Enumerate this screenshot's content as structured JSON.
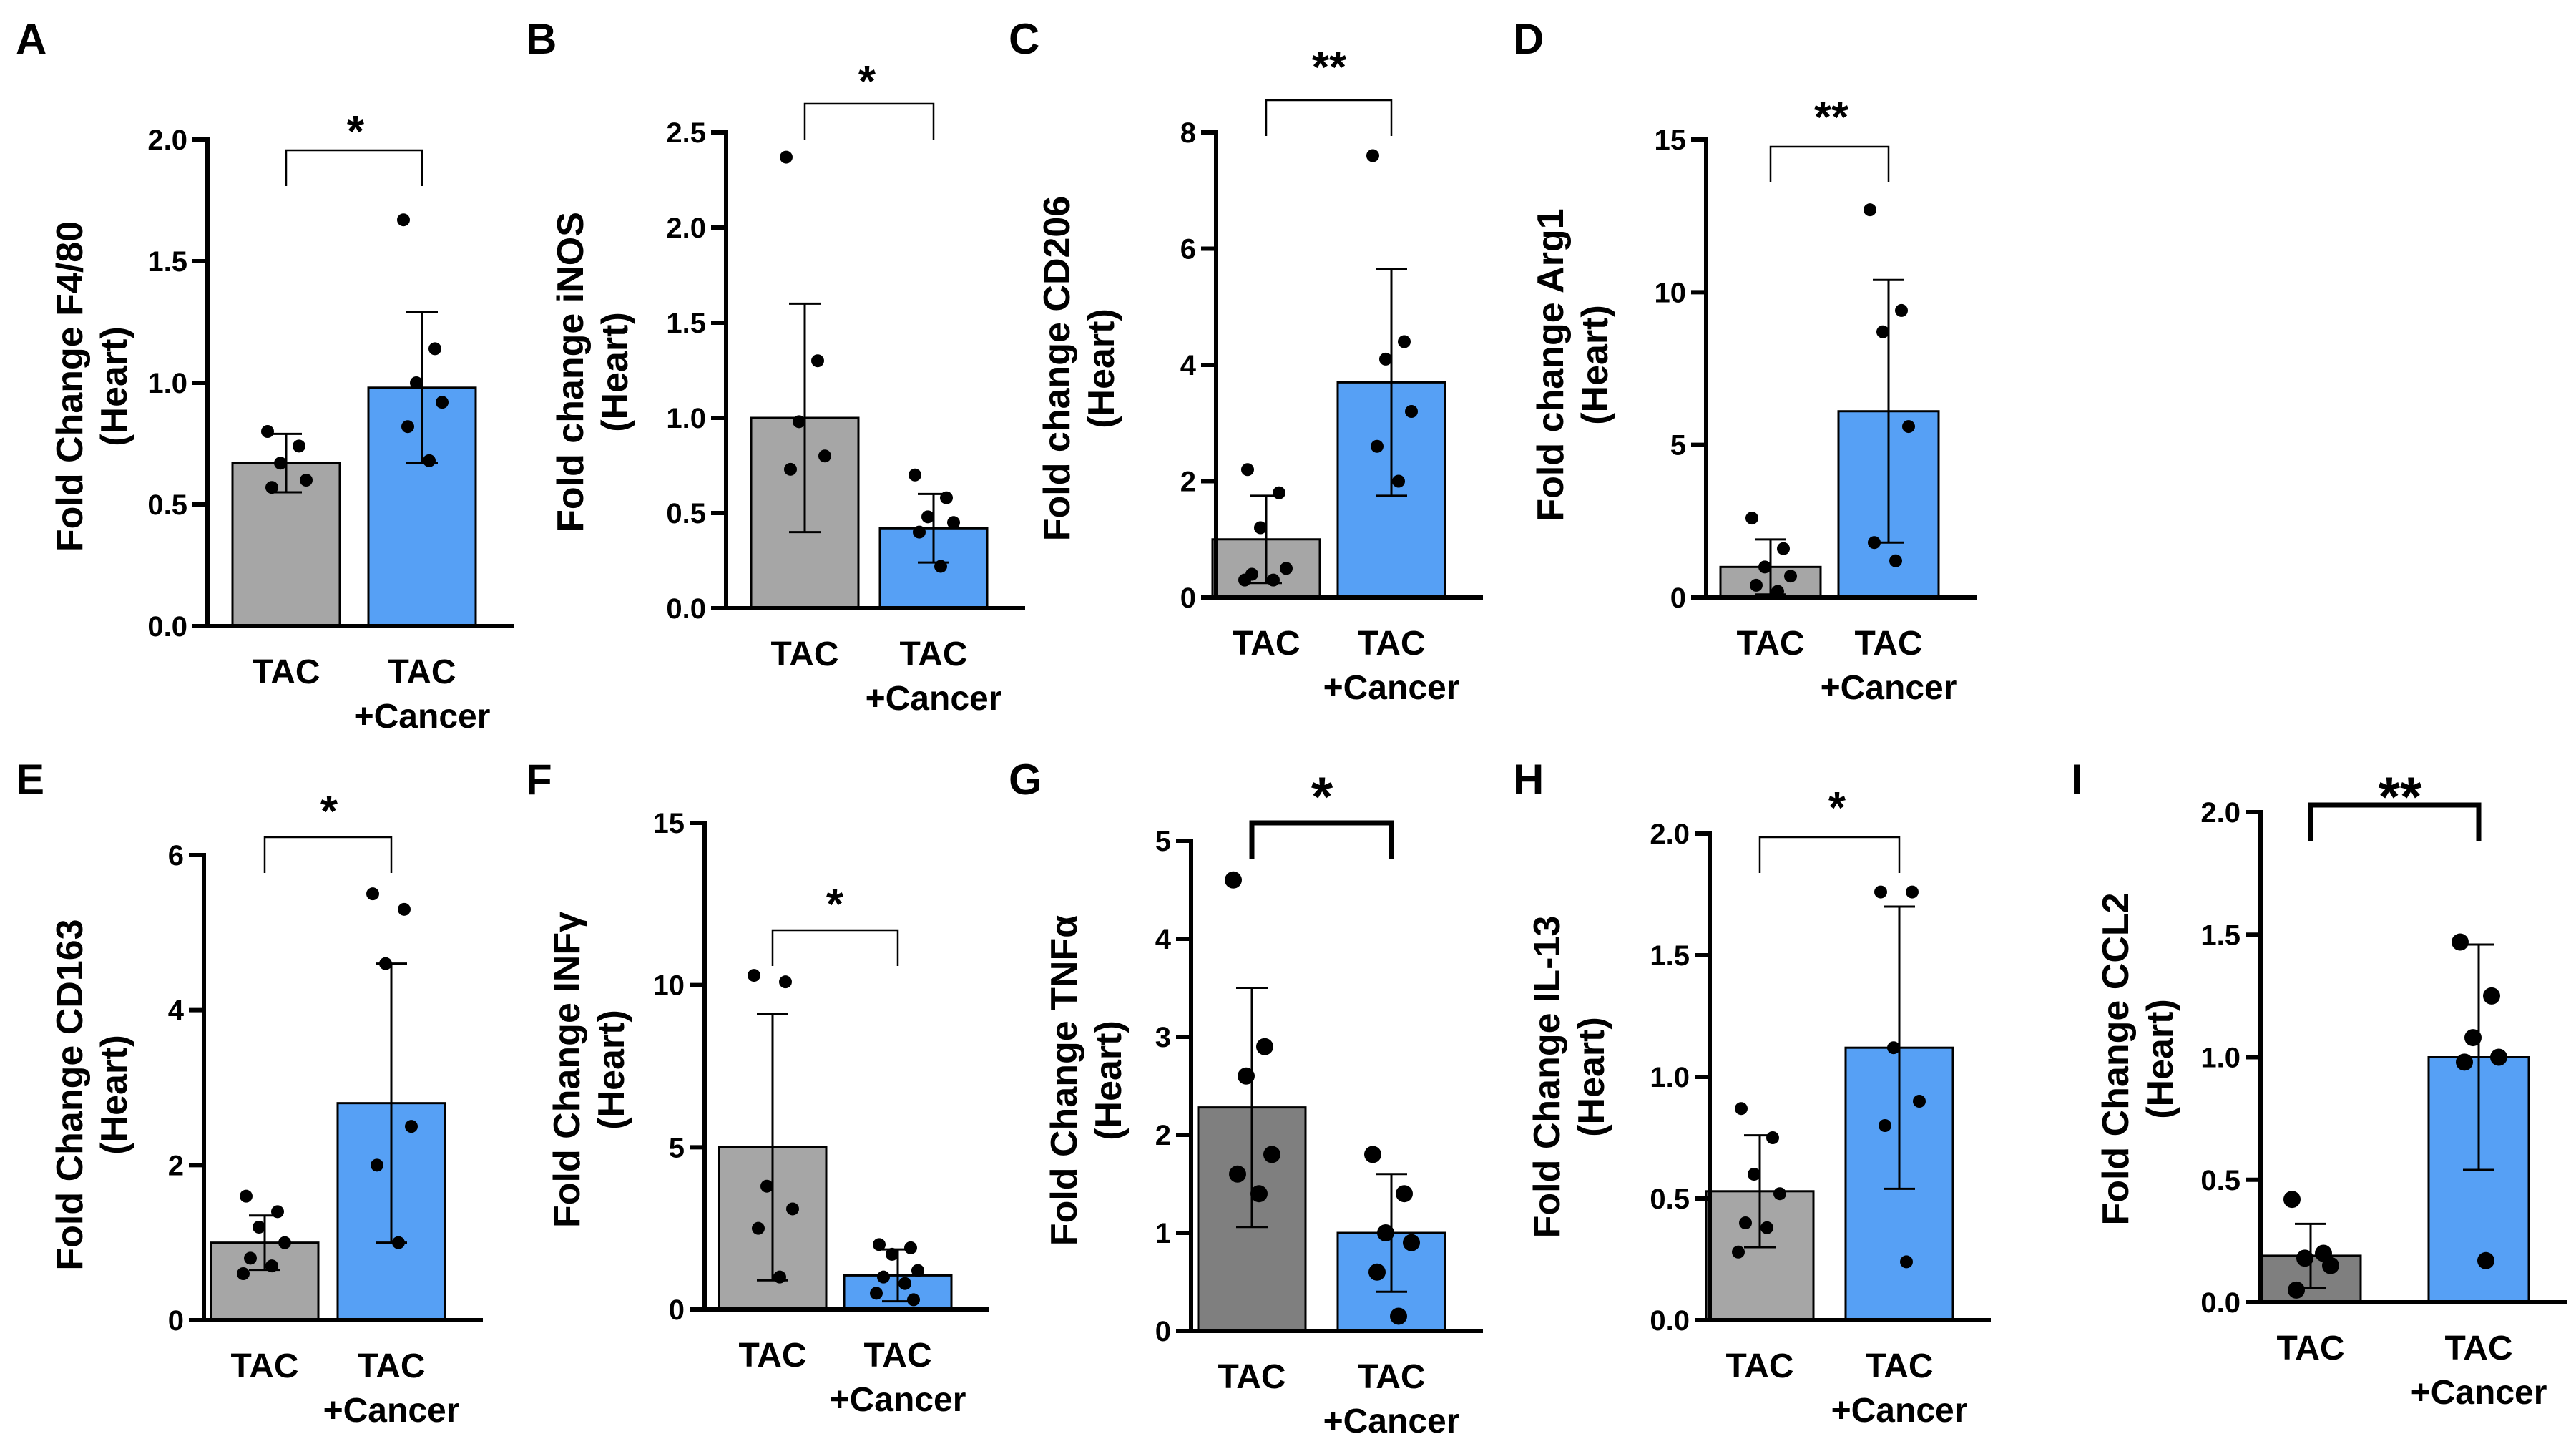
{
  "colors": {
    "gray": "#a6a6a6",
    "darkgray": "#7f7f7f",
    "blue": "#56a0f5",
    "edge": "#000000"
  },
  "chart_data": [
    {
      "panel": "A",
      "type": "bar",
      "categories": [
        "TAC",
        "TAC\n+Cancer"
      ],
      "ylabel": "Fold Change F4/80\n(Heart)",
      "ylim": [
        0,
        2.0
      ],
      "yticks": [
        "0.0",
        "0.5",
        "1.0",
        "1.5",
        "2.0"
      ],
      "ytick_values": [
        0,
        0.5,
        1.0,
        1.5,
        2.0
      ],
      "series": [
        {
          "values": [
            0.67,
            0.98
          ],
          "errors": [
            0.12,
            0.31
          ]
        }
      ],
      "points": [
        [
          0.8,
          0.74,
          0.67,
          0.6,
          0.57
        ],
        [
          1.67,
          1.14,
          1.0,
          0.92,
          0.82,
          0.68
        ]
      ],
      "significance": "*"
    },
    {
      "panel": "B",
      "type": "bar",
      "categories": [
        "TAC",
        "TAC\n+Cancer"
      ],
      "ylabel": "Fold change iNOS\n(Heart)",
      "ylim": [
        0,
        2.5
      ],
      "yticks": [
        "0.0",
        "0.5",
        "1.0",
        "1.5",
        "2.0",
        "2.5"
      ],
      "ytick_values": [
        0,
        0.5,
        1.0,
        1.5,
        2.0,
        2.5
      ],
      "series": [
        {
          "values": [
            1.0,
            0.42
          ],
          "errors": [
            0.6,
            0.18
          ]
        }
      ],
      "points": [
        [
          2.37,
          1.3,
          0.98,
          0.8,
          0.73
        ],
        [
          0.7,
          0.58,
          0.48,
          0.45,
          0.4,
          0.22
        ]
      ],
      "significance": "*"
    },
    {
      "panel": "C",
      "type": "bar",
      "categories": [
        "TAC",
        "TAC\n+Cancer"
      ],
      "ylabel": "Fold change CD206\n(Heart)",
      "ylim": [
        0,
        8
      ],
      "yticks": [
        "0",
        "2",
        "4",
        "6",
        "8"
      ],
      "ytick_values": [
        0,
        2,
        4,
        6,
        8
      ],
      "series": [
        {
          "values": [
            1.0,
            3.7
          ],
          "errors": [
            0.75,
            1.95
          ]
        }
      ],
      "points": [
        [
          2.2,
          1.8,
          1.2,
          0.5,
          0.4,
          0.3,
          0.3
        ],
        [
          7.6,
          4.4,
          4.1,
          3.2,
          2.6,
          2.0
        ]
      ],
      "significance": "**"
    },
    {
      "panel": "D",
      "type": "bar",
      "categories": [
        "TAC",
        "TAC\n+Cancer"
      ],
      "ylabel": "Fold change Arg1\n(Heart)",
      "ylim": [
        0,
        15
      ],
      "yticks": [
        "0",
        "5",
        "10",
        "15"
      ],
      "ytick_values": [
        0,
        5,
        10,
        15
      ],
      "series": [
        {
          "values": [
            1.0,
            6.1
          ],
          "errors": [
            0.9,
            4.3
          ]
        }
      ],
      "points": [
        [
          2.6,
          1.6,
          1.0,
          0.7,
          0.4,
          0.2
        ],
        [
          12.7,
          9.4,
          8.7,
          5.6,
          1.8,
          1.2
        ]
      ],
      "significance": "**"
    },
    {
      "panel": "E",
      "type": "bar",
      "categories": [
        "TAC",
        "TAC\n+Cancer"
      ],
      "ylabel": "Fold Change CD163\n(Heart)",
      "ylim": [
        0,
        6
      ],
      "yticks": [
        "0",
        "2",
        "4",
        "6"
      ],
      "ytick_values": [
        0,
        2,
        4,
        6
      ],
      "series": [
        {
          "values": [
            1.0,
            2.8
          ],
          "errors": [
            0.35,
            1.8
          ]
        }
      ],
      "points": [
        [
          1.6,
          1.4,
          1.2,
          1.0,
          0.8,
          0.7,
          0.6
        ],
        [
          5.5,
          5.3,
          4.6,
          2.5,
          2.0,
          1.0
        ]
      ],
      "significance": "*"
    },
    {
      "panel": "F",
      "type": "bar",
      "categories": [
        "TAC",
        "TAC\n+Cancer"
      ],
      "ylabel": "Fold Change INFγ\n(Heart)",
      "ylim": [
        0,
        15
      ],
      "yticks": [
        "0",
        "5",
        "10",
        "15"
      ],
      "ytick_values": [
        0,
        5,
        10,
        15
      ],
      "series": [
        {
          "values": [
            5.0,
            1.05
          ],
          "errors": [
            4.1,
            0.8
          ]
        }
      ],
      "points": [
        [
          10.3,
          10.1,
          3.8,
          3.1,
          2.5,
          1.0
        ],
        [
          2.0,
          1.9,
          1.7,
          1.2,
          1.0,
          0.8,
          0.5,
          0.3
        ]
      ],
      "significance": "*"
    },
    {
      "panel": "G",
      "type": "bar",
      "categories": [
        "TAC",
        "TAC\n+Cancer"
      ],
      "ylabel": "Fold Change TNFα\n(Heart)",
      "ylim": [
        0,
        5
      ],
      "yticks": [
        "0",
        "1",
        "2",
        "3",
        "4",
        "5"
      ],
      "ytick_values": [
        0,
        1,
        2,
        3,
        4,
        5
      ],
      "series": [
        {
          "values": [
            2.28,
            1.0
          ],
          "errors": [
            1.22,
            0.6
          ]
        }
      ],
      "points": [
        [
          4.6,
          2.9,
          2.6,
          1.8,
          1.6,
          1.4
        ],
        [
          1.8,
          1.4,
          1.0,
          0.9,
          0.6,
          0.15
        ]
      ],
      "significance": "*",
      "bar_color": "darkgray",
      "bold_bracket": true
    },
    {
      "panel": "H",
      "type": "bar",
      "categories": [
        "TAC",
        "TAC\n+Cancer"
      ],
      "ylabel": "Fold Change IL-13\n(Heart)",
      "ylim": [
        0,
        2.0
      ],
      "yticks": [
        "0.0",
        "0.5",
        "1.0",
        "1.5",
        "2.0"
      ],
      "ytick_values": [
        0,
        0.5,
        1.0,
        1.5,
        2.0
      ],
      "series": [
        {
          "values": [
            0.53,
            1.12
          ],
          "errors": [
            0.23,
            0.58
          ]
        }
      ],
      "points": [
        [
          0.87,
          0.75,
          0.6,
          0.52,
          0.4,
          0.38,
          0.28
        ],
        [
          1.76,
          1.76,
          1.12,
          0.9,
          0.8,
          0.24
        ]
      ],
      "significance": "*"
    },
    {
      "panel": "I",
      "type": "bar",
      "categories": [
        "TAC",
        "TAC\n+Cancer"
      ],
      "ylabel": "Fold Change CCL2\n(Heart)",
      "ylim": [
        0,
        2.0
      ],
      "yticks": [
        "0.0",
        "0.5",
        "1.0",
        "1.5",
        "2.0"
      ],
      "ytick_values": [
        0,
        0.5,
        1.0,
        1.5,
        2.0
      ],
      "series": [
        {
          "values": [
            0.19,
            1.0
          ],
          "errors": [
            0.13,
            0.46
          ]
        }
      ],
      "points": [
        [
          0.42,
          0.2,
          0.18,
          0.15,
          0.05
        ],
        [
          1.47,
          1.25,
          1.08,
          1.0,
          0.98,
          0.17
        ]
      ],
      "significance": "**",
      "bar_color": "darkgray",
      "bold_bracket": true
    }
  ]
}
